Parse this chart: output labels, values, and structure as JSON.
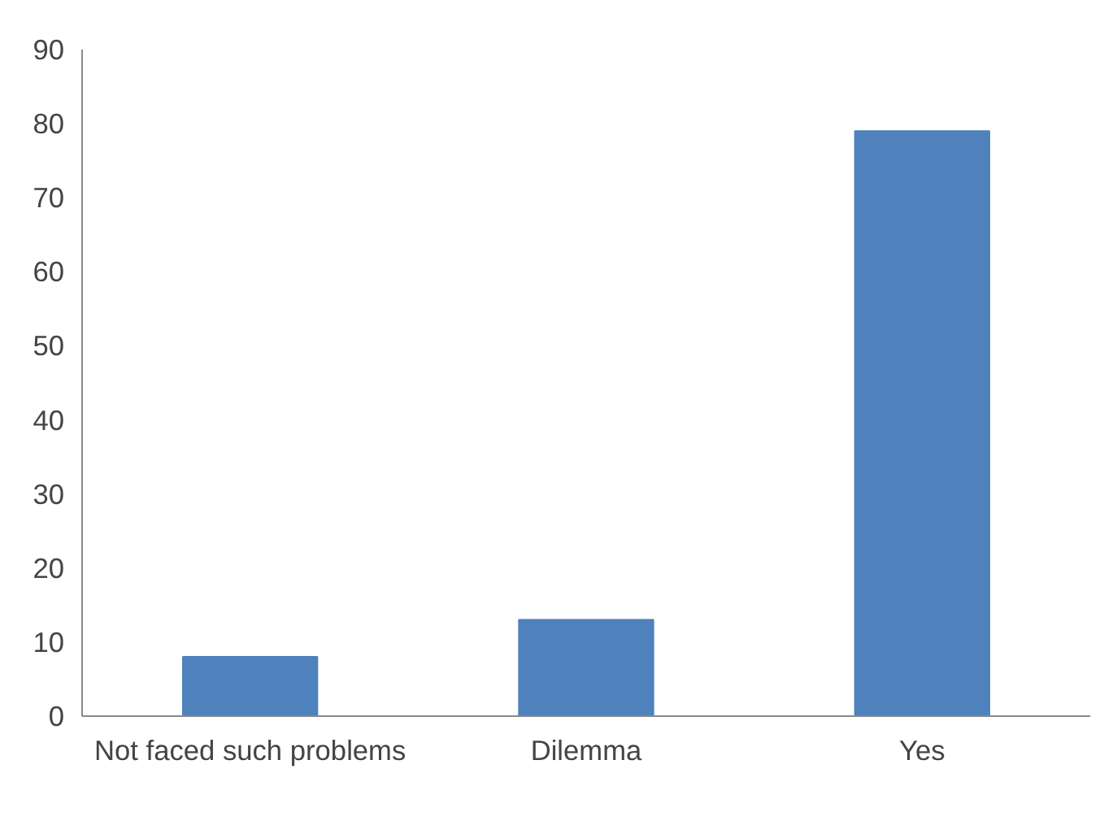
{
  "chart_data": {
    "type": "bar",
    "categories": [
      "Not faced such problems",
      "Dilemma",
      "Yes"
    ],
    "values": [
      8,
      13,
      79
    ],
    "color": "#4f81bd",
    "ylim": [
      0,
      90
    ],
    "yticks": [
      0,
      10,
      20,
      30,
      40,
      50,
      60,
      70,
      80,
      90
    ],
    "grid": false
  }
}
